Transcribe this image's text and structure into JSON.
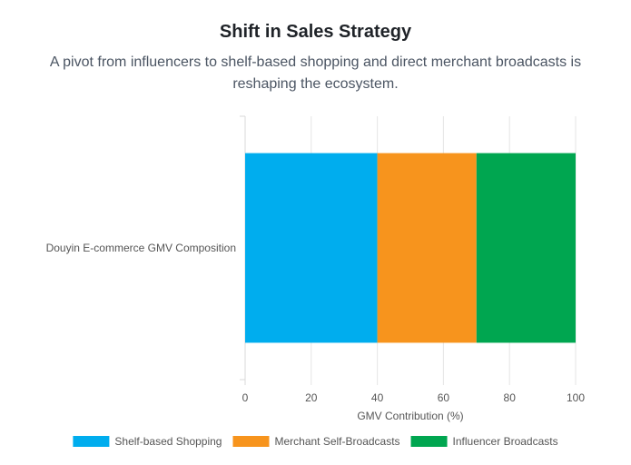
{
  "header": {
    "title": "Shift in Sales Strategy",
    "subtitle": "A pivot from influencers to shelf-based shopping and direct merchant broadcasts is reshaping the ecosystem."
  },
  "chart_data": {
    "type": "bar",
    "orientation": "horizontal",
    "stacked": true,
    "categories": [
      "Douyin E-commerce GMV Composition"
    ],
    "series": [
      {
        "name": "Shelf-based Shopping",
        "values": [
          40
        ],
        "color": "#00adee"
      },
      {
        "name": "Merchant Self-Broadcasts",
        "values": [
          30
        ],
        "color": "#f7941d"
      },
      {
        "name": "Influencer Broadcasts",
        "values": [
          30
        ],
        "color": "#00a650"
      }
    ],
    "xlabel": "GMV Contribution (%)",
    "ylabel": "",
    "xlim": [
      0,
      100
    ],
    "xticks": [
      0,
      20,
      40,
      60,
      80,
      100
    ],
    "grid": true,
    "legend_position": "bottom"
  }
}
